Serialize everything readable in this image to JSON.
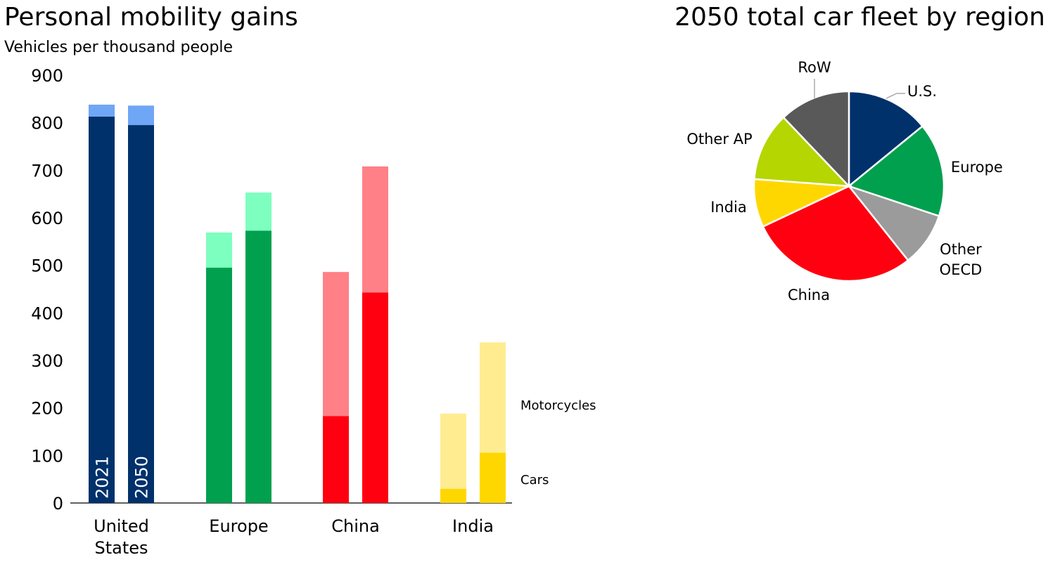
{
  "chart_data": [
    {
      "type": "bar",
      "stacked": true,
      "title": "Personal mobility gains",
      "subtitle": "Vehicles per thousand people",
      "ylim": [
        0,
        900
      ],
      "yticks": [
        0,
        100,
        200,
        300,
        400,
        500,
        600,
        700,
        800,
        900
      ],
      "grid": false,
      "categories": [
        "United States",
        "Europe",
        "China",
        "India"
      ],
      "category_lines": [
        [
          "United",
          "States"
        ],
        [
          "Europe"
        ],
        [
          "China"
        ],
        [
          "India"
        ]
      ],
      "years": [
        "2021",
        "2050"
      ],
      "series": [
        {
          "name": "Cars",
          "values": [
            [
              813,
              795
            ],
            [
              495,
              573
            ],
            [
              183,
              443
            ],
            [
              30,
              106
            ]
          ]
        },
        {
          "name": "Motorcycles",
          "values": [
            [
              25,
              41
            ],
            [
              74,
              80
            ],
            [
              303,
              265
            ],
            [
              158,
              232
            ]
          ]
        }
      ],
      "colors": {
        "cars": [
          "#00316B",
          "#00A04F",
          "#FF0010",
          "#FFD700"
        ],
        "motorcycles": [
          "#6FA6F5",
          "#7DFFC0",
          "#FF8087",
          "#FFEC91"
        ]
      }
    },
    {
      "type": "pie",
      "title": "2050 total car fleet by region",
      "labels": [
        "U.S.",
        "Europe",
        "Other OECD",
        "China",
        "India",
        "Other AP",
        "RoW"
      ],
      "label_lines": [
        [
          "U.S."
        ],
        [
          "Europe"
        ],
        [
          "Other",
          "OECD"
        ],
        [
          "China"
        ],
        [
          "India"
        ],
        [
          "Other AP"
        ],
        [
          "RoW"
        ]
      ],
      "values": [
        14.1,
        16.0,
        9.2,
        28.7,
        8.2,
        11.7,
        12.1
      ],
      "colors": [
        "#00316B",
        "#00A04F",
        "#9B9B9B",
        "#FF0010",
        "#FFD700",
        "#B5D600",
        "#595959"
      ]
    }
  ]
}
